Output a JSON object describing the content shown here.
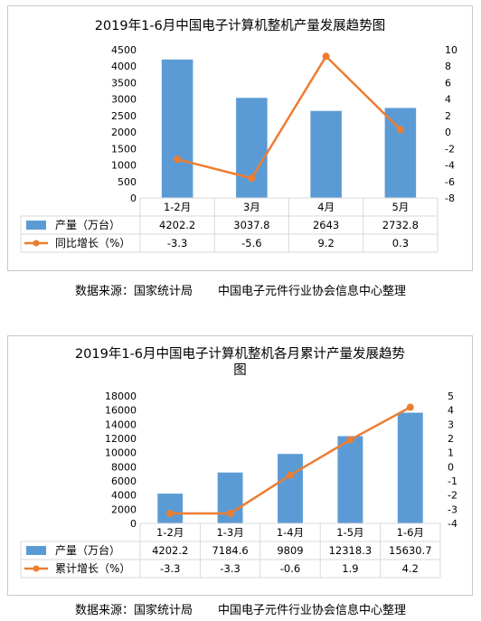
{
  "charts": [
    {
      "title": "2019年1-6月中国电子计算机整机产量发展趋势图",
      "source": "数据来源：国家统计局",
      "organizer": "中国电子元件行业协会信息中心整理"
    },
    {
      "title": "2019年1-6月中国电子计算机整机各月累计产量发展趋势图",
      "source": "数据来源：国家统计局",
      "organizer": "中国电子元件行业协会信息中心整理"
    }
  ],
  "chart_data": [
    {
      "type": "bar",
      "title": "2019年1-6月中国电子计算机整机产量发展趋势图",
      "categories": [
        "1-2月",
        "3月",
        "4月",
        "5月"
      ],
      "series": [
        {
          "name": "产量（万台）",
          "type": "bar",
          "axis": "left",
          "color": "#5b9bd5",
          "values": [
            4202.2,
            3037.8,
            2643,
            2732.8
          ]
        },
        {
          "name": "同比增长（%）",
          "type": "line",
          "axis": "right",
          "color": "#ed7d31",
          "values": [
            -3.3,
            -5.6,
            9.2,
            0.3
          ]
        }
      ],
      "y_left": {
        "min": 0,
        "max": 4500,
        "step": 500
      },
      "y_right": {
        "min": -8,
        "max": 10,
        "step": 2
      },
      "grid": false,
      "data_table": true,
      "value_labels": [
        "4202.2",
        "3037.8",
        "2643",
        "2732.8"
      ],
      "growth_labels": [
        "-3.3",
        "-5.6",
        "9.2",
        "0.3"
      ]
    },
    {
      "type": "bar",
      "title": "2019年1-6月中国电子计算机整机各月累计产量发展趋势图",
      "categories": [
        "1-2月",
        "1-3月",
        "1-4月",
        "1-5月",
        "1-6月"
      ],
      "series": [
        {
          "name": "产量（万台）",
          "type": "bar",
          "axis": "left",
          "color": "#5b9bd5",
          "values": [
            4202.2,
            7184.6,
            9809,
            12318.3,
            15630.7
          ]
        },
        {
          "name": "累计增长（%）",
          "type": "line",
          "axis": "right",
          "color": "#ed7d31",
          "values": [
            -3.3,
            -3.3,
            -0.6,
            1.9,
            4.2
          ]
        }
      ],
      "y_left": {
        "min": 0,
        "max": 18000,
        "step": 2000
      },
      "y_right": {
        "min": -4,
        "max": 5,
        "step": 1
      },
      "grid": false,
      "data_table": true,
      "value_labels": [
        "4202.2",
        "7184.6",
        "9809",
        "12318.3",
        "15630.7"
      ],
      "growth_labels": [
        "-3.3",
        "-3.3",
        "-0.6",
        "1.9",
        "4.2"
      ]
    }
  ]
}
